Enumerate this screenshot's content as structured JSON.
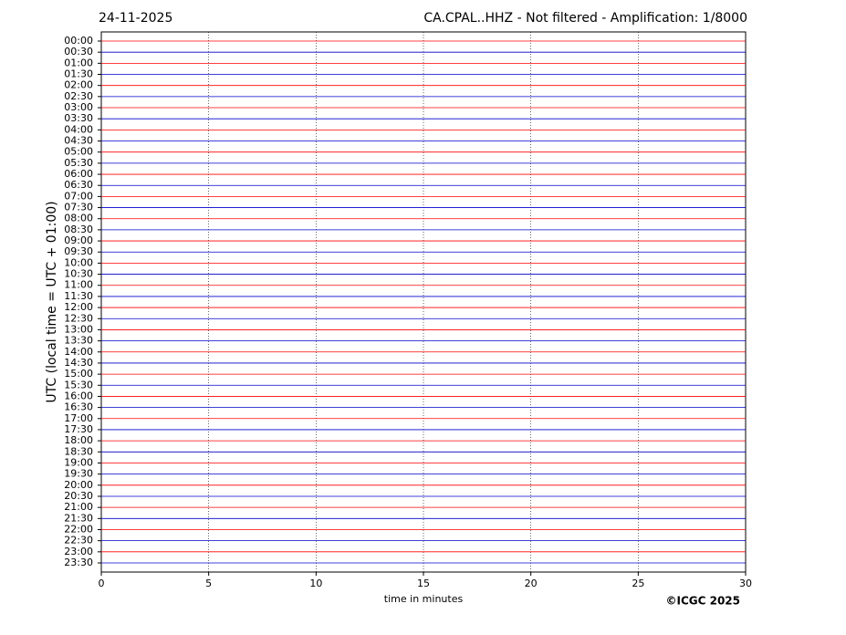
{
  "chart_data": {
    "type": "helicorder",
    "date": "24-11-2025",
    "title": "CA.CPAL..HHZ - Not filtered - Amplification: 1/8000",
    "y_label": "UTC (local time = UTC + 01:00)",
    "x_label": "time in minutes",
    "credit": "©ICGC 2025",
    "categories": [
      "00:00",
      "00:30",
      "01:00",
      "01:30",
      "02:00",
      "02:30",
      "03:00",
      "03:30",
      "04:00",
      "04:30",
      "05:00",
      "05:30",
      "06:00",
      "06:30",
      "07:00",
      "07:30",
      "08:00",
      "08:30",
      "09:00",
      "09:30",
      "10:00",
      "10:30",
      "11:00",
      "11:30",
      "12:00",
      "12:30",
      "13:00",
      "13:30",
      "14:00",
      "14:30",
      "15:00",
      "15:30",
      "16:00",
      "16:30",
      "17:00",
      "17:30",
      "18:00",
      "18:30",
      "19:00",
      "19:30",
      "20:00",
      "20:30",
      "21:00",
      "21:30",
      "22:00",
      "22:30",
      "23:00",
      "23:30"
    ],
    "trace_colors": [
      "#ff0000",
      "#0000cc"
    ],
    "xlim": [
      0,
      30
    ],
    "xticks": [
      0,
      5,
      10,
      15,
      20,
      25,
      30
    ],
    "grid": true
  }
}
